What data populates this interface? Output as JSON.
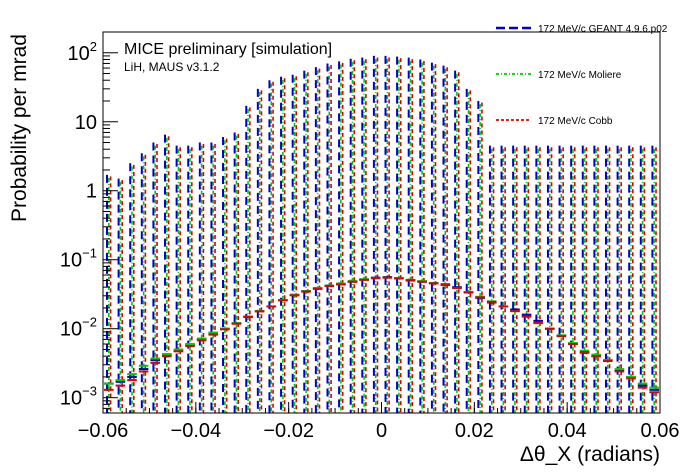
{
  "chart_data": {
    "type": "line",
    "title": "",
    "xlabel": "Δθ_X (radians)",
    "ylabel": "Probability per mrad",
    "xlim": [
      -0.06,
      0.06
    ],
    "ylim": [
      0.0006,
      200
    ],
    "log_y": true,
    "grid": false,
    "legend_position": "top-right, outside plot",
    "annotations": [
      "MICE preliminary [simulation]",
      "LiH, MAUS v3.1.2"
    ],
    "x_ticks": [
      -0.06,
      -0.04,
      -0.02,
      0,
      0.02,
      0.04,
      0.06
    ],
    "x_tick_labels": [
      "−0.06",
      "−0.04",
      "−0.02",
      "0",
      "0.02",
      "0.04",
      "0.06"
    ],
    "y_ticks": [
      0.001,
      0.01,
      0.1,
      1,
      10,
      100
    ],
    "bin_edges_range": [
      -0.06,
      0.06
    ],
    "bin_width": 0.0025,
    "x": [
      -0.05875,
      -0.05625,
      -0.05375,
      -0.05125,
      -0.04875,
      -0.04625,
      -0.04375,
      -0.04125,
      -0.03875,
      -0.03625,
      -0.03375,
      -0.03125,
      -0.02875,
      -0.02625,
      -0.02375,
      -0.02125,
      -0.01875,
      -0.01625,
      -0.01375,
      -0.01125,
      -0.00875,
      -0.00625,
      -0.00375,
      -0.00125,
      0.00125,
      0.00375,
      0.00625,
      0.00875,
      0.01125,
      0.01375,
      0.01625,
      0.01875,
      0.02125,
      0.02375,
      0.02625,
      0.02875,
      0.03125,
      0.03375,
      0.03625,
      0.03875,
      0.04125,
      0.04375,
      0.04625,
      0.04875,
      0.05125,
      0.05375,
      0.05625,
      0.05875
    ],
    "series": [
      {
        "name": "172 MeV/c GEANT 4.9.6.p02",
        "color": "#0000cc",
        "dash": "long-dash",
        "values": [
          0.0016,
          0.0017,
          0.002,
          0.0026,
          0.0035,
          0.0042,
          0.0048,
          0.0058,
          0.007,
          0.0085,
          0.01,
          0.012,
          0.015,
          0.018,
          0.021,
          0.026,
          0.031,
          0.035,
          0.038,
          0.042,
          0.044,
          0.048,
          0.052,
          0.055,
          0.056,
          0.054,
          0.05,
          0.048,
          0.046,
          0.044,
          0.04,
          0.034,
          0.028,
          0.024,
          0.021,
          0.019,
          0.016,
          0.013,
          0.01,
          0.008,
          0.006,
          0.0045,
          0.004,
          0.0035,
          0.0025,
          0.002,
          0.0015,
          0.0013
        ],
        "error_tops": [
          1.7,
          1.5,
          2.5,
          3.5,
          5.0,
          6.5,
          4.5,
          4.5,
          5.0,
          5.0,
          6.0,
          7.0,
          17.0,
          30.0,
          40.0,
          45.0,
          48.0,
          55.0,
          62.0,
          70.0,
          75.0,
          82.0,
          85.0,
          90.0,
          90.0,
          88.0,
          85.0,
          80.0,
          72.0,
          65.0,
          55.0,
          30.0,
          20.0,
          4.5,
          4.5,
          4.5,
          4.5,
          4.5,
          4.5,
          4.5,
          4.5,
          4.5,
          4.5,
          4.5,
          4.5,
          4.5,
          4.5,
          4.5
        ]
      },
      {
        "name": "172 MeV/c Moliere",
        "color": "#00cc00",
        "dash": "dash-dot",
        "values": [
          0.0016,
          0.0018,
          0.0022,
          0.0029,
          0.0037,
          0.0043,
          0.005,
          0.006,
          0.0072,
          0.0088,
          0.01,
          0.012,
          0.015,
          0.018,
          0.021,
          0.026,
          0.031,
          0.035,
          0.039,
          0.042,
          0.045,
          0.049,
          0.052,
          0.054,
          0.055,
          0.054,
          0.051,
          0.049,
          0.046,
          0.043,
          0.039,
          0.034,
          0.029,
          0.025,
          0.021,
          0.018,
          0.015,
          0.012,
          0.01,
          0.008,
          0.0062,
          0.0048,
          0.0042,
          0.0035,
          0.0026,
          0.002,
          0.0016,
          0.0014
        ]
      },
      {
        "name": "172 MeV/c Cobb",
        "color": "#dd0000",
        "dash": "dashed",
        "values": [
          0.0013,
          0.0015,
          0.0018,
          0.0024,
          0.0032,
          0.004,
          0.0047,
          0.0056,
          0.0068,
          0.0082,
          0.0098,
          0.0118,
          0.0148,
          0.0178,
          0.021,
          0.0258,
          0.0305,
          0.0345,
          0.038,
          0.0415,
          0.044,
          0.048,
          0.051,
          0.054,
          0.055,
          0.0535,
          0.0505,
          0.048,
          0.0455,
          0.043,
          0.039,
          0.0335,
          0.0285,
          0.0245,
          0.021,
          0.018,
          0.015,
          0.0122,
          0.01,
          0.0078,
          0.006,
          0.0046,
          0.004,
          0.0034,
          0.0024,
          0.0019,
          0.0014,
          0.0012
        ]
      }
    ]
  }
}
